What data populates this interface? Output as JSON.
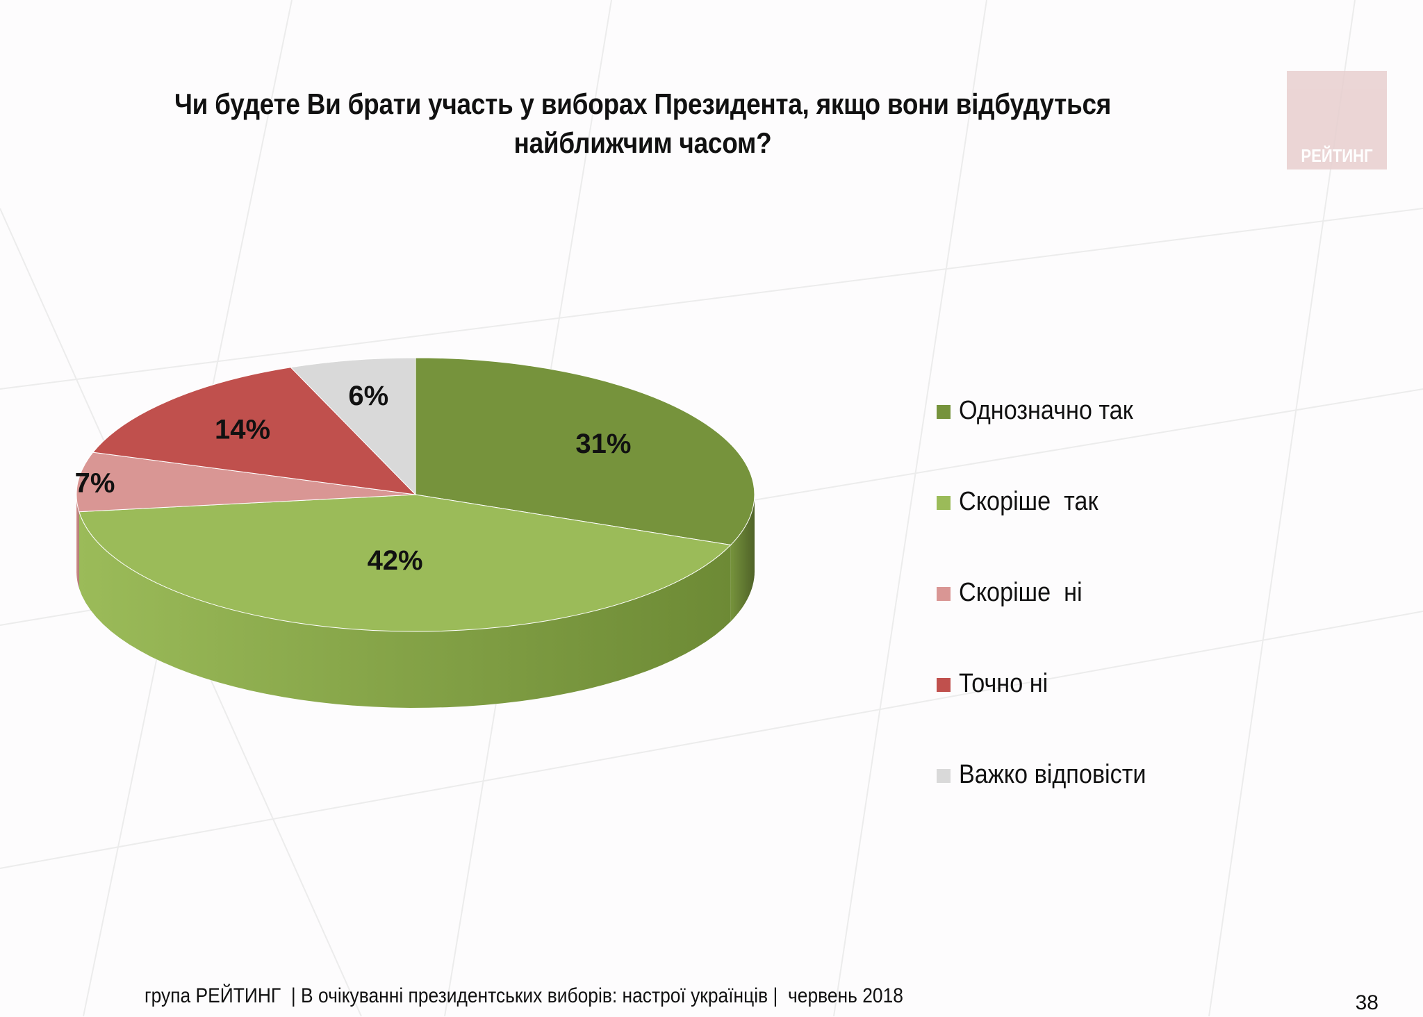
{
  "title": "Чи будете Ви брати участь у виборах Президента, якщо вони відбудуться найближчим часом?",
  "logo_text": "РЕЙТИНГ",
  "footer": "група РЕЙТИНГ  | В очікуванні президентських виборів: настрої українців |  червень 2018",
  "page_number": "38",
  "colors": {
    "background": "#fdfcfd",
    "logo_bg": "#e8cfcf"
  },
  "chart_data": {
    "type": "pie",
    "style": "3d",
    "title": "Чи будете Ви брати участь у виборах Президента, якщо вони відбудуться найближчим часом?",
    "legend_position": "right",
    "categories": [
      "Однозначно так",
      "Скоріше  так",
      "Скоріше  ні",
      "Точно ні",
      "Важко відповісти"
    ],
    "values": [
      31,
      42,
      7,
      14,
      6
    ],
    "labels": [
      "31%",
      "42%",
      "7%",
      "14%",
      "6%"
    ],
    "colors": [
      "#76933c",
      "#9bbb59",
      "#d99694",
      "#c0504d",
      "#d9d9d9"
    ],
    "side_colors": [
      "#4f6228",
      "#6d8a35",
      "#a86b69",
      "#8c3532",
      "#a6a6a6"
    ]
  }
}
